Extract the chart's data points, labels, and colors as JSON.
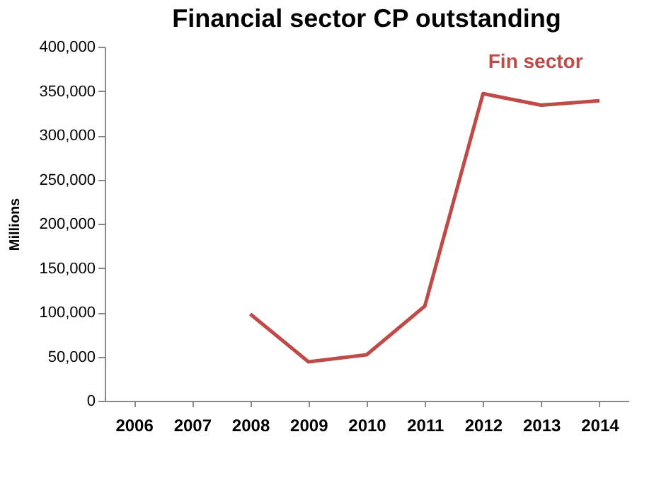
{
  "chart_data": {
    "type": "line",
    "title": "Financial sector CP outstanding",
    "ylabel": "Millions",
    "categories": [
      "2006",
      "2007",
      "2008",
      "2009",
      "2010",
      "2011",
      "2012",
      "2013",
      "2014"
    ],
    "series": [
      {
        "name": "Fin sector",
        "color": "#be4b48",
        "values": [
          null,
          null,
          98000,
          44000,
          52000,
          107000,
          347000,
          334000,
          339000
        ]
      }
    ],
    "ylim": [
      0,
      400000
    ],
    "yticks": [
      {
        "value": 0,
        "label": "0"
      },
      {
        "value": 50000,
        "label": "50,000"
      },
      {
        "value": 100000,
        "label": "100,000"
      },
      {
        "value": 150000,
        "label": "150,000"
      },
      {
        "value": 200000,
        "label": "200,000"
      },
      {
        "value": 250000,
        "label": "250,000"
      },
      {
        "value": 300000,
        "label": "300,000"
      },
      {
        "value": 350000,
        "label": "350,000"
      },
      {
        "value": 400000,
        "label": "400,000"
      }
    ],
    "grid": false,
    "marker": "none",
    "line_style": "solid"
  }
}
